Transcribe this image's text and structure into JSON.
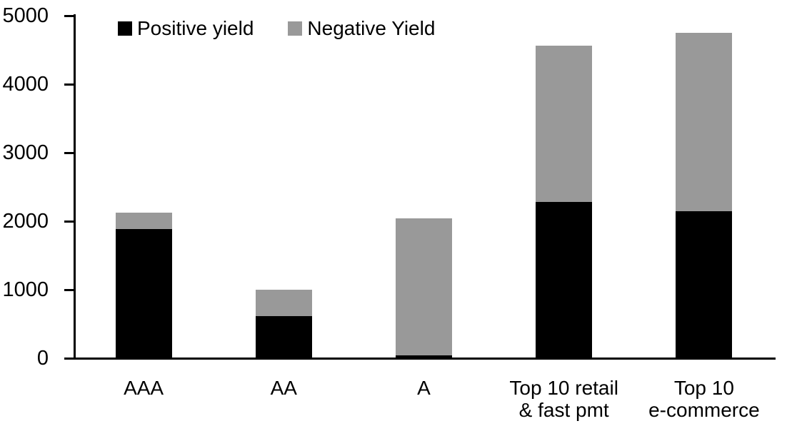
{
  "chart_data": {
    "type": "bar",
    "stacked": true,
    "title": "",
    "xlabel": "",
    "ylabel": "",
    "categories": [
      "AAA",
      "AA",
      "A",
      "Top 10 retail\n& fast pmt",
      "Top 10\ne-commerce"
    ],
    "series": [
      {
        "name": "Positive yield",
        "color": "#000000",
        "values": [
          1890,
          615,
          40,
          2280,
          2145
        ]
      },
      {
        "name": "Negative Yield",
        "color": "#999999",
        "values": [
          235,
          385,
          2000,
          2280,
          2610
        ]
      }
    ],
    "totals": [
      2125,
      1000,
      2040,
      4560,
      4755
    ],
    "ylim": [
      0,
      5000
    ],
    "yticks": [
      0,
      1000,
      2000,
      3000,
      4000,
      5000
    ],
    "legend_position": "top",
    "grid": false,
    "axis_color": "#000000",
    "background_color": "#ffffff"
  }
}
